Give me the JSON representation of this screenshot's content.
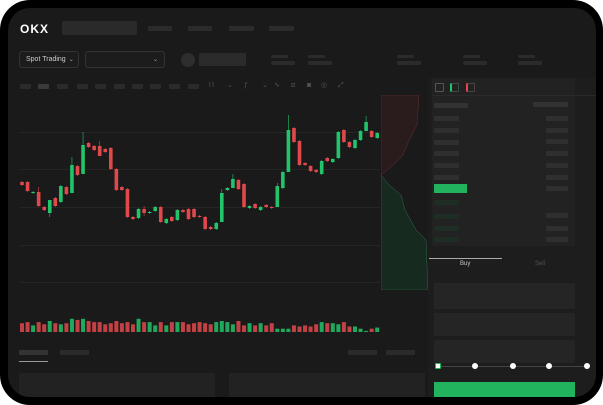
{
  "header": {
    "logo": "OKX"
  },
  "toolbar": {
    "market_selector": "Spot Trading",
    "market_chevron": "⌄",
    "pair_chevron": "⌄"
  },
  "chart_tools": [
    "candle-type-icon",
    "chevron-down-icon",
    "indicator-icon",
    "chevron-down-icon",
    "line-icon",
    "ruler-icon",
    "camera-icon",
    "settings-icon",
    "fullscreen-icon"
  ],
  "orderbook": {
    "view_icons": [
      "both-sides-icon",
      "bids-only-icon",
      "asks-only-icon"
    ]
  },
  "trade": {
    "tabs": [
      "Buy",
      "Sell"
    ],
    "active_tab": "Buy",
    "slider_percent": 0
  },
  "colors": {
    "up": "#22c36a",
    "down": "#e0494c",
    "accent": "#22b35e",
    "background": "#1a1a1a"
  },
  "chart_data": {
    "type": "candlestick",
    "candles": [
      [
        118,
        115
      ],
      [
        118,
        109
      ],
      [
        107,
        108
      ],
      [
        108,
        94,
        113,
        93
      ],
      [
        93,
        90
      ],
      [
        87,
        100,
        100,
        83
      ],
      [
        102,
        94
      ],
      [
        98,
        114
      ],
      [
        113,
        106
      ],
      [
        107,
        135,
        143,
        107
      ],
      [
        134,
        125
      ],
      [
        126,
        155,
        168,
        126
      ],
      [
        157,
        153
      ],
      [
        154,
        150
      ],
      [
        154,
        144,
        159,
        144
      ],
      [
        151,
        148
      ],
      [
        152,
        131
      ],
      [
        131,
        110
      ],
      [
        113,
        110
      ],
      [
        111,
        83
      ],
      [
        83,
        81
      ],
      [
        82,
        91
      ],
      [
        91,
        87,
        94,
        84
      ],
      [
        87,
        88
      ],
      [
        89,
        93
      ],
      [
        93,
        78
      ],
      [
        77,
        81
      ],
      [
        83,
        79
      ],
      [
        80,
        90
      ],
      [
        90,
        88
      ],
      [
        91,
        81
      ],
      [
        91,
        83
      ],
      [
        84,
        83
      ],
      [
        83,
        71
      ],
      [
        73,
        71
      ],
      [
        71,
        77
      ],
      [
        78,
        107,
        111,
        78
      ],
      [
        110,
        112
      ],
      [
        112,
        121,
        126,
        112
      ],
      [
        120,
        111
      ],
      [
        116,
        93
      ],
      [
        92,
        94
      ],
      [
        96,
        92
      ],
      [
        90,
        93
      ],
      [
        95,
        93
      ],
      [
        93,
        92
      ],
      [
        93,
        114,
        117,
        93
      ],
      [
        112,
        128
      ],
      [
        128,
        170,
        185,
        128
      ],
      [
        172,
        158
      ],
      [
        159,
        135
      ],
      [
        137,
        135
      ],
      [
        134,
        129
      ],
      [
        130,
        128
      ],
      [
        126,
        139
      ],
      [
        142,
        139
      ],
      [
        138,
        141
      ],
      [
        142,
        168
      ],
      [
        170,
        158
      ],
      [
        158,
        153
      ],
      [
        152,
        160
      ],
      [
        160,
        169
      ],
      [
        169,
        178,
        184,
        169
      ],
      [
        169,
        163
      ],
      [
        162,
        167
      ]
    ],
    "volumes": [
      8,
      9,
      6,
      9,
      7,
      10,
      8,
      7,
      8,
      12,
      11,
      12,
      10,
      9,
      9,
      7,
      8,
      10,
      8,
      9,
      7,
      12,
      9,
      9,
      6,
      9,
      6,
      9,
      9,
      9,
      7,
      8,
      9,
      8,
      7,
      9,
      10,
      9,
      7,
      10,
      6,
      8,
      6,
      8,
      6,
      8,
      3,
      3,
      3,
      6,
      5,
      6,
      5,
      7,
      9,
      8,
      8,
      7,
      9,
      5,
      5,
      3,
      1,
      3,
      4
    ]
  }
}
